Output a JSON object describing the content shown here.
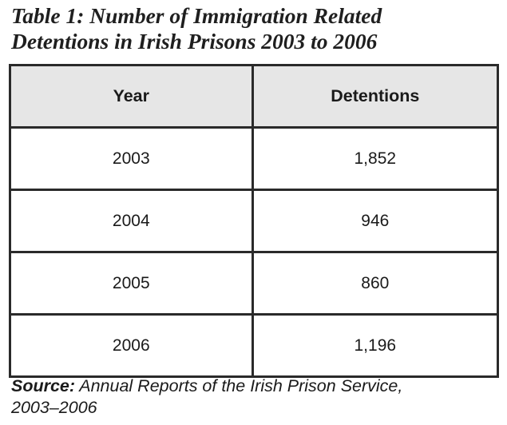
{
  "title": {
    "line1": "Table 1: Number of Immigration Related",
    "line2": "Detentions in Irish Prisons 2003 to 2006"
  },
  "table": {
    "headers": [
      "Year",
      "Detentions"
    ],
    "rows": [
      [
        "2003",
        "1,852"
      ],
      [
        "2004",
        "946"
      ],
      [
        "2005",
        "860"
      ],
      [
        "2006",
        "1,196"
      ]
    ]
  },
  "source": {
    "label": "Source:",
    "text": "Annual Reports of the Irish Prison Service,",
    "text2": "2003–2006"
  }
}
